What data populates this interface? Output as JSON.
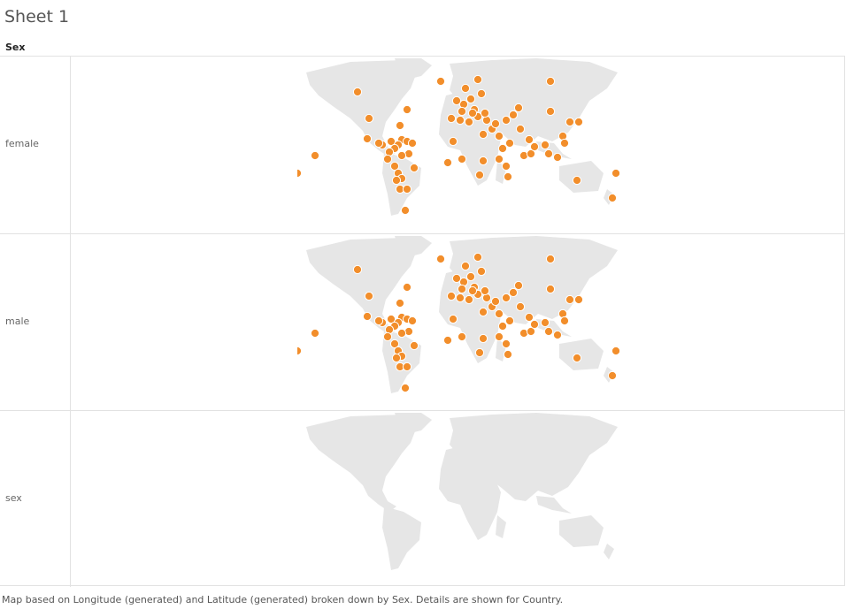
{
  "sheet": {
    "title": "Sheet 1",
    "column_header": "Sex"
  },
  "rows": [
    {
      "label": "female",
      "has_marks": true
    },
    {
      "label": "male",
      "has_marks": true
    },
    {
      "label": "sex",
      "has_marks": false
    }
  ],
  "caption": "Map based on Longitude (generated) and Latitude (generated) broken down by Sex.  Details are shown for Country.",
  "colors": {
    "mark": "#f28e2b",
    "land": "#e6e6e6",
    "grid_line": "#e2e2e2"
  }
}
